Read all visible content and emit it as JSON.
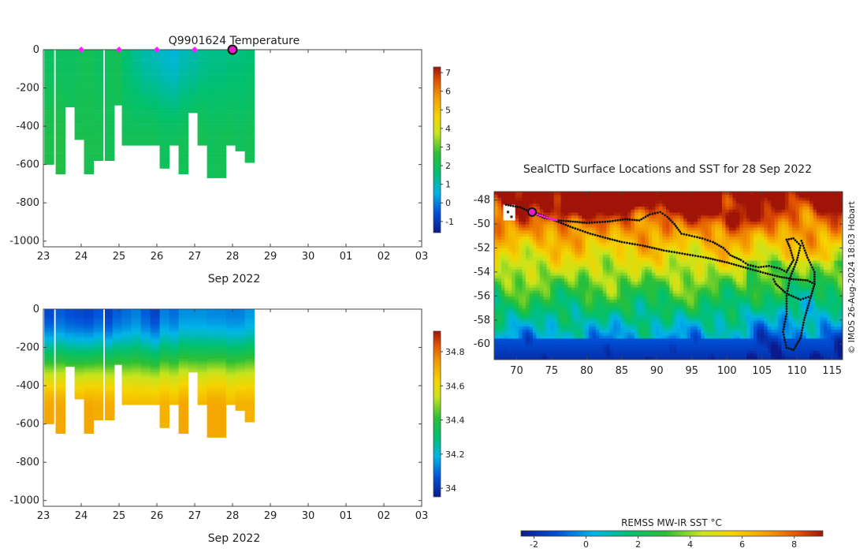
{
  "chart_data": [
    {
      "type": "heatmap",
      "name": "temperature-section",
      "title": "Q9901624  Temperature",
      "xlabel": "Sep 2022",
      "x_ticks": [
        "23",
        "24",
        "25",
        "26",
        "27",
        "28",
        "29",
        "30",
        "01",
        "02",
        "03"
      ],
      "xlim": [
        23,
        33
      ],
      "ylim": [
        -1030,
        0
      ],
      "y_ticks": [
        0,
        -200,
        -400,
        -600,
        -800,
        -1000
      ],
      "colorbar_ticks": [
        -1,
        0,
        1,
        2,
        3,
        4,
        5,
        6,
        7
      ],
      "colorbar_range": [
        -1.6,
        7.3
      ],
      "profile_x": [
        23.15,
        23.45,
        23.7,
        23.95,
        24.2,
        24.45,
        24.75,
        24.95,
        25.2,
        25.45,
        25.7,
        25.95,
        26.2,
        26.45,
        26.7,
        26.95,
        27.2,
        27.45,
        27.7,
        27.95,
        28.2,
        28.45
      ],
      "profile_width": 0.25,
      "profile_max_depth": [
        600,
        650,
        300,
        470,
        650,
        580,
        580,
        290,
        500,
        500,
        500,
        500,
        620,
        500,
        650,
        330,
        500,
        670,
        670,
        500,
        530,
        590
      ],
      "surface_value": [
        1.9,
        1.9,
        1.9,
        2.0,
        2.1,
        1.9,
        2.0,
        2.1,
        1.6,
        1.3,
        1.1,
        1.0,
        0.8,
        0.7,
        1.0,
        1.1,
        1.3,
        1.4,
        1.4,
        1.5,
        1.5,
        1.6
      ],
      "deep_value": [
        2.3,
        2.4,
        2.1,
        2.2,
        2.2,
        2.2,
        2.1,
        2.1,
        2.1,
        2.1,
        2.1,
        2.1,
        2.0,
        2.0,
        2.1,
        2.2,
        2.2,
        2.0,
        2.1,
        2.1,
        2.0,
        2.1
      ],
      "markers_x": [
        24,
        25,
        26,
        27
      ],
      "current_x": 28
    },
    {
      "type": "heatmap",
      "name": "salinity-section",
      "title": "",
      "xlabel": "Sep 2022",
      "x_ticks": [
        "23",
        "24",
        "25",
        "26",
        "27",
        "28",
        "29",
        "30",
        "01",
        "02",
        "03"
      ],
      "xlim": [
        23,
        33
      ],
      "ylim": [
        -1030,
        0
      ],
      "y_ticks": [
        0,
        -200,
        -400,
        -600,
        -800,
        -1000
      ],
      "colorbar_ticks": [
        34,
        34.2,
        34.4,
        34.6,
        34.8
      ],
      "colorbar_range": [
        33.95,
        34.92
      ],
      "profile_x": [
        23.15,
        23.45,
        23.7,
        23.95,
        24.2,
        24.45,
        24.75,
        24.95,
        25.2,
        25.45,
        25.7,
        25.95,
        26.2,
        26.45,
        26.7,
        26.95,
        27.2,
        27.45,
        27.7,
        27.95,
        28.2,
        28.45
      ],
      "profile_width": 0.25,
      "profile_max_depth": [
        600,
        650,
        300,
        470,
        650,
        580,
        580,
        290,
        500,
        500,
        500,
        500,
        620,
        500,
        650,
        330,
        500,
        670,
        670,
        500,
        530,
        590
      ],
      "surface_value": [
        34.05,
        34.08,
        34.06,
        34.05,
        34.04,
        34.07,
        34.03,
        34.08,
        34.1,
        34.12,
        34.08,
        34.04,
        34.12,
        34.1,
        34.14,
        34.14,
        34.14,
        34.13,
        34.13,
        34.12,
        34.12,
        34.15
      ],
      "deep_value": [
        34.72,
        34.72,
        34.7,
        34.7,
        34.72,
        34.71,
        34.71,
        34.7,
        34.68,
        34.68,
        34.68,
        34.68,
        34.7,
        34.68,
        34.72,
        34.7,
        34.69,
        34.72,
        34.72,
        34.68,
        34.7,
        34.7
      ]
    },
    {
      "type": "heatmap",
      "name": "sst-map",
      "title": "SealCTD Surface Locations and SST for 28 Sep 2022",
      "x_ticks": [
        70,
        75,
        80,
        85,
        90,
        95,
        100,
        105,
        110,
        115
      ],
      "y_ticks": [
        -48,
        -50,
        -52,
        -54,
        -56,
        -58,
        -60
      ],
      "xlim": [
        66.8,
        116.5
      ],
      "ylim": [
        -61.3,
        -47.3
      ],
      "side_label": "© IMOS 26-Aug-2024 18:03 Hobart",
      "colorbar_label": "REMSS MW-IR SST °C",
      "colorbar_ticks": [
        -2,
        0,
        2,
        4,
        6,
        8
      ],
      "colorbar_range": [
        -2.5,
        9.1
      ],
      "track_a": [
        [
          68.5,
          -48.4
        ],
        [
          70.5,
          -48.6
        ],
        [
          72.0,
          -49.0
        ],
        [
          74.0,
          -49.5
        ],
        [
          76.0,
          -49.7
        ],
        [
          78.0,
          -49.8
        ],
        [
          80.0,
          -49.9
        ],
        [
          83.0,
          -49.8
        ],
        [
          85.5,
          -49.6
        ],
        [
          87.5,
          -49.7
        ],
        [
          89.0,
          -49.2
        ],
        [
          90.5,
          -49.0
        ],
        [
          91.5,
          -49.4
        ],
        [
          92.5,
          -50.0
        ],
        [
          93.5,
          -50.8
        ],
        [
          95.0,
          -51.0
        ],
        [
          96.5,
          -51.2
        ],
        [
          98.0,
          -51.5
        ],
        [
          99.5,
          -52.0
        ],
        [
          100.5,
          -52.6
        ],
        [
          102.0,
          -53.0
        ],
        [
          103.0,
          -53.4
        ],
        [
          104.5,
          -53.6
        ],
        [
          106.0,
          -53.5
        ],
        [
          107.5,
          -53.7
        ],
        [
          108.5,
          -54.0
        ],
        [
          109.5,
          -53.0
        ],
        [
          109.0,
          -52.0
        ],
        [
          108.5,
          -51.3
        ],
        [
          109.5,
          -51.2
        ],
        [
          110.5,
          -51.8
        ],
        [
          110.0,
          -53.0
        ],
        [
          109.0,
          -54.5
        ],
        [
          108.5,
          -56.0
        ],
        [
          108.5,
          -57.5
        ],
        [
          108.0,
          -59.0
        ],
        [
          108.5,
          -60.3
        ],
        [
          109.5,
          -60.5
        ],
        [
          110.5,
          -59.5
        ],
        [
          111.0,
          -58.0
        ],
        [
          111.5,
          -57.0
        ],
        [
          112.0,
          -56.0
        ],
        [
          112.5,
          -55.0
        ],
        [
          112.5,
          -54.0
        ],
        [
          111.5,
          -52.8
        ],
        [
          111.0,
          -52.0
        ],
        [
          110.5,
          -51.2
        ]
      ],
      "track_b": [
        [
          72.5,
          -49.0
        ],
        [
          75.0,
          -49.6
        ],
        [
          78.0,
          -50.3
        ],
        [
          80.5,
          -50.8
        ],
        [
          83.0,
          -51.2
        ],
        [
          85.0,
          -51.5
        ],
        [
          88.0,
          -51.8
        ],
        [
          91.0,
          -52.2
        ],
        [
          94.0,
          -52.5
        ],
        [
          97.0,
          -52.8
        ],
        [
          100.0,
          -53.2
        ],
        [
          103.0,
          -53.7
        ],
        [
          105.5,
          -54.1
        ],
        [
          107.5,
          -54.4
        ],
        [
          109.5,
          -54.6
        ],
        [
          111.5,
          -54.7
        ],
        [
          112.5,
          -55.0
        ],
        [
          112.0,
          -56.0
        ],
        [
          110.5,
          -56.3
        ],
        [
          108.5,
          -55.8
        ],
        [
          107.0,
          -55.0
        ],
        [
          106.5,
          -54.4
        ]
      ],
      "recent_track": [
        [
          72.2,
          -49.0
        ],
        [
          73.0,
          -49.2
        ],
        [
          74.0,
          -49.4
        ],
        [
          75.0,
          -49.6
        ],
        [
          76.0,
          -49.7
        ]
      ],
      "current_location": [
        72.2,
        -49.0
      ],
      "warm_patches": [
        [
          86.5,
          -47.9
        ],
        [
          92.0,
          -47.8
        ],
        [
          97.0,
          -48.6
        ],
        [
          114.5,
          -48.0
        ],
        [
          81.0,
          -48.2
        ],
        [
          101.5,
          -49.6
        ],
        [
          77.5,
          -48.7
        ]
      ]
    }
  ]
}
